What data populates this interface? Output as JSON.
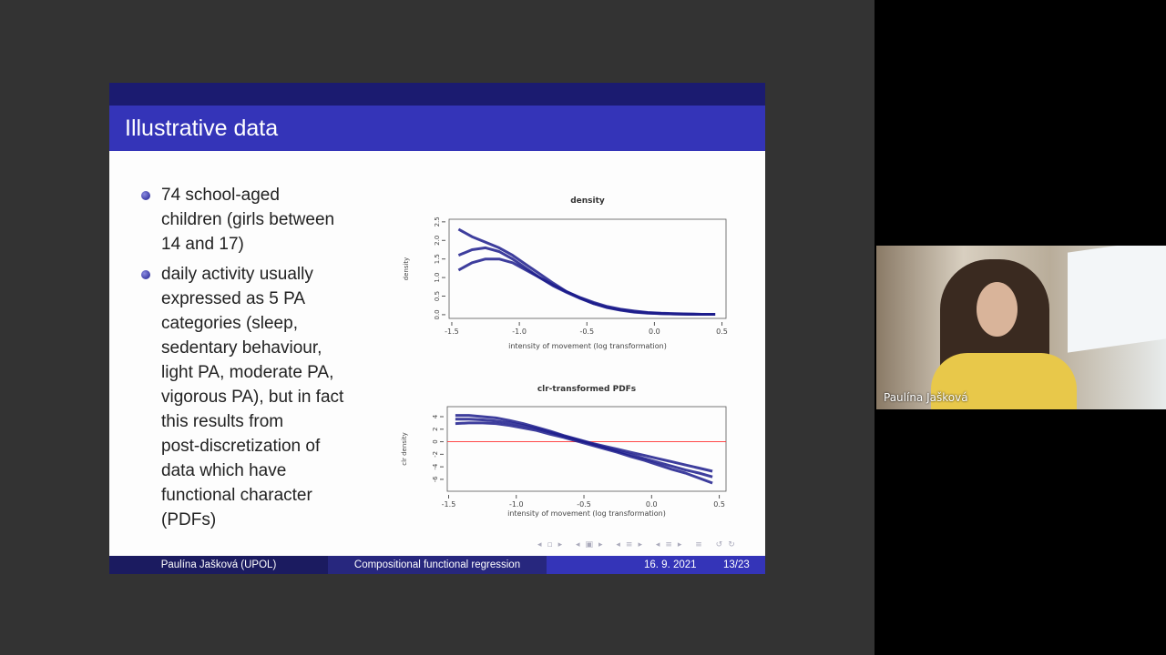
{
  "slide": {
    "title": "Illustrative data",
    "bullets": [
      [
        "74 school-aged",
        "children (girls between",
        "14 and 17)"
      ],
      [
        "daily activity usually",
        "expressed as 5 PA",
        "categories (sleep,",
        "sedentary behaviour,",
        "light PA, moderate PA,",
        "vigorous PA), but in fact",
        "this results from",
        "post-discretization of",
        "data which have",
        "functional character",
        "(PDFs)"
      ]
    ]
  },
  "chart_data": [
    {
      "type": "line",
      "title": "density",
      "xlabel": "intensity of movement (log transformation)",
      "ylabel": "density",
      "x": [
        -1.45,
        -1.35,
        -1.25,
        -1.15,
        -1.05,
        -0.95,
        -0.85,
        -0.75,
        -0.65,
        -0.55,
        -0.45,
        -0.35,
        -0.25,
        -0.15,
        -0.05,
        0.05,
        0.15,
        0.25,
        0.35,
        0.45
      ],
      "series": [
        {
          "color": "#1c1c8c",
          "values": [
            1.6,
            1.75,
            1.8,
            1.7,
            1.5,
            1.25,
            1.0,
            0.78,
            0.6,
            0.44,
            0.3,
            0.2,
            0.13,
            0.08,
            0.05,
            0.03,
            0.02,
            0.015,
            0.01,
            0.01
          ]
        },
        {
          "color": "#1c1c8c",
          "values": [
            2.3,
            2.1,
            1.95,
            1.8,
            1.6,
            1.35,
            1.1,
            0.85,
            0.62,
            0.45,
            0.3,
            0.19,
            0.12,
            0.07,
            0.04,
            0.03,
            0.02,
            0.01,
            0.01,
            0.01
          ]
        },
        {
          "color": "#1c1c8c",
          "values": [
            1.2,
            1.4,
            1.5,
            1.5,
            1.4,
            1.2,
            1.0,
            0.8,
            0.62,
            0.46,
            0.33,
            0.22,
            0.15,
            0.1,
            0.06,
            0.04,
            0.03,
            0.02,
            0.01,
            0.01
          ]
        }
      ],
      "xlim": [
        -1.52,
        0.53
      ],
      "ylim": [
        -0.1,
        2.57
      ],
      "xticks": [
        -1.5,
        {
          "value": -1,
          "label": "-1.0"
        },
        -0.5,
        {
          "value": 0,
          "label": "0.0"
        },
        0.5
      ],
      "yticks": [
        {
          "value": 0,
          "label": "0.0"
        },
        0.5,
        {
          "value": 1,
          "label": "1.0"
        },
        1.5,
        {
          "value": 2,
          "label": "2.0"
        },
        2.5
      ]
    },
    {
      "type": "line",
      "title": "clr-transformed PDFs",
      "xlabel": "intensity of movement (log transformation)",
      "ylabel": "clr density",
      "x": [
        -1.45,
        -1.35,
        -1.25,
        -1.15,
        -1.05,
        -0.95,
        -0.85,
        -0.75,
        -0.65,
        -0.55,
        -0.45,
        -0.35,
        -0.25,
        -0.15,
        -0.05,
        0.05,
        0.15,
        0.25,
        0.35,
        0.45
      ],
      "series": [
        {
          "color": "#1c1c8c",
          "values": [
            3.6,
            3.6,
            3.5,
            3.3,
            3.0,
            2.6,
            2.1,
            1.5,
            0.9,
            0.3,
            -0.3,
            -0.9,
            -1.5,
            -2.1,
            -2.7,
            -3.3,
            -3.9,
            -4.5,
            -5.0,
            -5.6
          ]
        },
        {
          "color": "#1c1c8c",
          "values": [
            4.2,
            4.2,
            4.0,
            3.8,
            3.4,
            2.9,
            2.3,
            1.7,
            1.0,
            0.4,
            -0.2,
            -0.7,
            -1.2,
            -1.7,
            -2.2,
            -2.7,
            -3.2,
            -3.7,
            -4.2,
            -4.7
          ]
        },
        {
          "color": "#1c1c8c",
          "values": [
            2.9,
            3.0,
            3.0,
            2.9,
            2.6,
            2.2,
            1.8,
            1.2,
            0.7,
            0.1,
            -0.5,
            -1.1,
            -1.7,
            -2.4,
            -3.0,
            -3.7,
            -4.4,
            -5.0,
            -5.8,
            -6.6
          ]
        }
      ],
      "hline": 0,
      "hline_color": "#ff3030",
      "xlim": [
        -1.51,
        0.55
      ],
      "ylim": [
        -7.9,
        5.6
      ],
      "xticks": [
        -1.5,
        {
          "value": -1,
          "label": "-1.0"
        },
        -0.5,
        {
          "value": 0,
          "label": "0.0"
        },
        0.5
      ],
      "yticks": [
        4,
        2,
        0,
        -2,
        -4,
        -6
      ]
    }
  ],
  "footer": {
    "author": "Paulína Jašková  (UPOL)",
    "talk": "Compositional functional regression",
    "date": "16. 9. 2021",
    "page": "13/23"
  },
  "video": {
    "name": "Paulína Jašková"
  }
}
